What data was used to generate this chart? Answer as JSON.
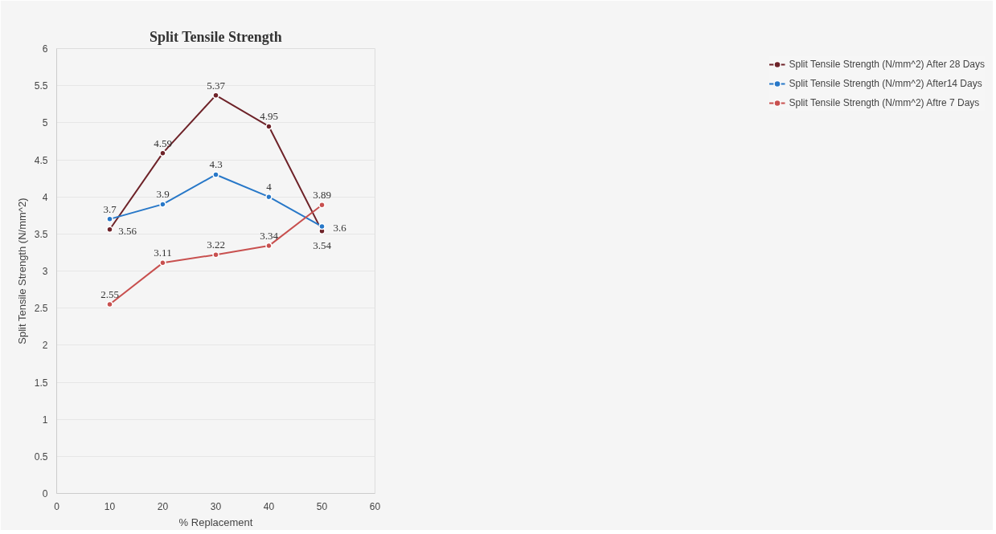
{
  "chart_data": {
    "type": "line",
    "title": "Split Tensile Strength",
    "xlabel": "% Replacement",
    "ylabel": "Split Tensile Strength (N/mm^2)",
    "x": [
      10,
      20,
      30,
      40,
      50
    ],
    "series": [
      {
        "name": "Split Tensile Strength (N/mm^2) After 28 Days",
        "color": "#6e2329",
        "values": [
          3.56,
          4.59,
          5.37,
          4.95,
          3.54
        ]
      },
      {
        "name": "Split Tensile Strength (N/mm^2) After14 Days",
        "color": "#2878c8",
        "values": [
          3.7,
          3.9,
          4.3,
          4,
          3.6
        ]
      },
      {
        "name": "Split Tensile Strength (N/mm^2) Aftre 7 Days",
        "color": "#c8504f",
        "values": [
          2.55,
          3.11,
          3.22,
          3.34,
          3.89
        ]
      }
    ],
    "xlim": [
      0,
      60
    ],
    "xticks": [
      0,
      10,
      20,
      30,
      40,
      50,
      60
    ],
    "ylim": [
      0,
      6
    ],
    "yticks": [
      0,
      0.5,
      1,
      1.5,
      2,
      2.5,
      3,
      3.5,
      4,
      4.5,
      5,
      5.5,
      6
    ],
    "grid": "y",
    "legend": "right",
    "marker": "circle",
    "line_style": "solid",
    "data_labels": true
  }
}
